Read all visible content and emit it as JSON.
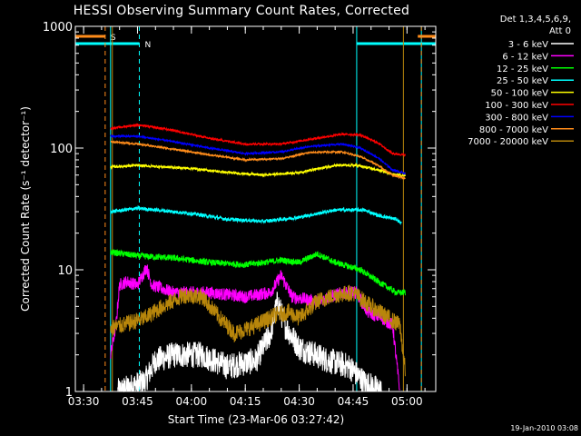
{
  "chart_data": {
    "type": "line",
    "title": "HESSI Observing Summary Count Rates, Corrected",
    "xlabel": "Start Time (23-Mar-06 03:27:42)",
    "ylabel": "Corrected Count Rate (s⁻¹ detector⁻¹)",
    "yscale": "log",
    "ylim": [
      1,
      1000
    ],
    "xlim": [
      "03:27:42",
      "05:08:00"
    ],
    "x_ticks": [
      "03:30",
      "03:45",
      "04:00",
      "04:15",
      "04:30",
      "04:45",
      "05:00"
    ],
    "y_ticks": [
      "1",
      "10",
      "100",
      "1000"
    ],
    "legend_header": [
      "Det 1,3,4,5,6,9,",
      "Att 0"
    ],
    "legend_position": "right",
    "footer": "19-Jan-2010 03:08",
    "flags": [
      {
        "label": "S",
        "color": "#ff8c1a",
        "start": "03:27:42",
        "end": "03:36:00"
      },
      {
        "label": "N",
        "color": "#00ffff",
        "start": "03:27:42",
        "end": "03:45:30"
      },
      {
        "label": "",
        "color": "#ff8c1a",
        "start": "05:03:00",
        "end": "05:08:00"
      },
      {
        "label": "",
        "color": "#00ffff",
        "start": "04:46:00",
        "end": "05:08:00"
      }
    ],
    "vlines": [
      {
        "time": "03:36:00",
        "color": "#ff8c1a",
        "style": "dashed"
      },
      {
        "time": "03:45:30",
        "color": "#00ffff",
        "style": "dashed"
      },
      {
        "time": "03:37:30",
        "color": "#00ffff",
        "style": "solid"
      },
      {
        "time": "03:38:00",
        "color": "#b8860b",
        "style": "solid"
      },
      {
        "time": "04:46:00",
        "color": "#00ffff",
        "style": "solid"
      },
      {
        "time": "04:59:00",
        "color": "#b8860b",
        "style": "solid"
      },
      {
        "time": "05:04:00",
        "color": "#00ffff",
        "style": "solid"
      },
      {
        "time": "05:04:00",
        "color": "#ff8c1a",
        "style": "dashed"
      }
    ],
    "series": [
      {
        "name": "3 - 6 keV",
        "color": "#ffffff",
        "noise": 0.25,
        "points": [
          [
            "03:39:30",
            1.0
          ],
          [
            "03:47:00",
            1.2
          ],
          [
            "03:50:00",
            1.8
          ],
          [
            "03:55:00",
            2.0
          ],
          [
            "04:03:00",
            2.0
          ],
          [
            "04:10:00",
            1.6
          ],
          [
            "04:18:00",
            1.8
          ],
          [
            "04:22:00",
            3.0
          ],
          [
            "04:24:00",
            5.5
          ],
          [
            "04:26:00",
            3.5
          ],
          [
            "04:30:00",
            2.3
          ],
          [
            "04:38:00",
            1.8
          ],
          [
            "04:44:00",
            1.6
          ],
          [
            "04:48:00",
            1.2
          ],
          [
            "04:53:00",
            1.0
          ]
        ]
      },
      {
        "name": "6 - 12 keV",
        "color": "#ff00ff",
        "noise": 0.12,
        "points": [
          [
            "03:37:30",
            2.0
          ],
          [
            "03:39:00",
            3.5
          ],
          [
            "03:40:00",
            7.5
          ],
          [
            "03:42:00",
            8.0
          ],
          [
            "03:45:00",
            7.5
          ],
          [
            "03:47:30",
            10.5
          ],
          [
            "03:49:00",
            7.5
          ],
          [
            "03:55:00",
            6.5
          ],
          [
            "04:05:00",
            6.5
          ],
          [
            "04:15:00",
            6.0
          ],
          [
            "04:22:00",
            6.5
          ],
          [
            "04:25:00",
            9.0
          ],
          [
            "04:28:00",
            6.0
          ],
          [
            "04:35:00",
            5.5
          ],
          [
            "04:42:00",
            6.5
          ],
          [
            "04:46:00",
            6.5
          ],
          [
            "04:49:00",
            4.5
          ],
          [
            "04:53:00",
            4.0
          ],
          [
            "04:56:00",
            3.5
          ],
          [
            "04:58:00",
            1.0
          ]
        ]
      },
      {
        "name": "12 - 25 keV",
        "color": "#00ff00",
        "noise": 0.06,
        "points": [
          [
            "03:37:30",
            14
          ],
          [
            "03:45:00",
            13
          ],
          [
            "03:55:00",
            12.5
          ],
          [
            "04:05:00",
            11.5
          ],
          [
            "04:15:00",
            11
          ],
          [
            "04:25:00",
            12
          ],
          [
            "04:30:00",
            11.5
          ],
          [
            "04:35:00",
            13.5
          ],
          [
            "04:40:00",
            11.5
          ],
          [
            "04:47:00",
            10
          ],
          [
            "04:52:00",
            8
          ],
          [
            "04:57:00",
            6.5
          ],
          [
            "04:59:30",
            6.5
          ]
        ]
      },
      {
        "name": "25 - 50 keV",
        "color": "#00ffff",
        "noise": 0.035,
        "points": [
          [
            "03:37:30",
            30
          ],
          [
            "03:45:00",
            32
          ],
          [
            "03:50:00",
            31
          ],
          [
            "04:00:00",
            29
          ],
          [
            "04:10:00",
            26
          ],
          [
            "04:20:00",
            25
          ],
          [
            "04:30:00",
            27
          ],
          [
            "04:40:00",
            31
          ],
          [
            "04:48:00",
            31
          ],
          [
            "04:52:00",
            28
          ],
          [
            "04:57:00",
            26
          ],
          [
            "04:58:30",
            24
          ]
        ]
      },
      {
        "name": "50 - 100 keV",
        "color": "#ffff00",
        "noise": 0.025,
        "points": [
          [
            "03:37:30",
            70
          ],
          [
            "03:45:00",
            72
          ],
          [
            "04:00:00",
            68
          ],
          [
            "04:10:00",
            63
          ],
          [
            "04:20:00",
            60
          ],
          [
            "04:30:00",
            63
          ],
          [
            "04:40:00",
            72
          ],
          [
            "04:46:00",
            72
          ],
          [
            "04:52:00",
            66
          ],
          [
            "04:57:00",
            60
          ],
          [
            "04:59:30",
            60
          ]
        ]
      },
      {
        "name": "100 - 300 keV",
        "color": "#ff0000",
        "noise": 0.02,
        "points": [
          [
            "03:37:30",
            145
          ],
          [
            "03:45:00",
            155
          ],
          [
            "03:55:00",
            140
          ],
          [
            "04:05:00",
            120
          ],
          [
            "04:15:00",
            108
          ],
          [
            "04:25:00",
            108
          ],
          [
            "04:33:00",
            118
          ],
          [
            "04:42:00",
            130
          ],
          [
            "04:47:00",
            128
          ],
          [
            "04:52:00",
            110
          ],
          [
            "04:56:00",
            90
          ],
          [
            "04:59:30",
            88
          ]
        ]
      },
      {
        "name": "300 - 800 keV",
        "color": "#0000ff",
        "noise": 0.018,
        "points": [
          [
            "03:37:30",
            125
          ],
          [
            "03:45:00",
            125
          ],
          [
            "03:55:00",
            113
          ],
          [
            "04:05:00",
            100
          ],
          [
            "04:15:00",
            90
          ],
          [
            "04:25:00",
            93
          ],
          [
            "04:33:00",
            103
          ],
          [
            "04:42:00",
            108
          ],
          [
            "04:47:00",
            100
          ],
          [
            "04:52:00",
            83
          ],
          [
            "04:56:00",
            66
          ],
          [
            "04:59:30",
            62
          ]
        ]
      },
      {
        "name": "800 - 7000 keV",
        "color": "#ff8c1a",
        "noise": 0.018,
        "points": [
          [
            "03:37:30",
            113
          ],
          [
            "03:45:00",
            108
          ],
          [
            "03:55:00",
            98
          ],
          [
            "04:05:00",
            88
          ],
          [
            "04:15:00",
            80
          ],
          [
            "04:25:00",
            82
          ],
          [
            "04:33:00",
            92
          ],
          [
            "04:42:00",
            93
          ],
          [
            "04:47:00",
            85
          ],
          [
            "04:52:00",
            72
          ],
          [
            "04:56:00",
            60
          ],
          [
            "04:59:30",
            56
          ]
        ]
      },
      {
        "name": "7000 - 20000 keV",
        "color": "#b8860b",
        "noise": 0.16,
        "points": [
          [
            "03:37:30",
            3.3
          ],
          [
            "03:42:00",
            3.6
          ],
          [
            "03:47:00",
            4.0
          ],
          [
            "03:52:00",
            5.0
          ],
          [
            "03:58:00",
            6.2
          ],
          [
            "04:03:00",
            6.0
          ],
          [
            "04:08:00",
            4.0
          ],
          [
            "04:12:00",
            3.0
          ],
          [
            "04:18:00",
            3.5
          ],
          [
            "04:23:00",
            4.2
          ],
          [
            "04:27:00",
            4.5
          ],
          [
            "04:30:00",
            4.0
          ],
          [
            "04:35:00",
            5.5
          ],
          [
            "04:40:00",
            6.2
          ],
          [
            "04:45:00",
            6.5
          ],
          [
            "04:50:00",
            5.0
          ],
          [
            "04:55:00",
            4.0
          ],
          [
            "04:58:00",
            3.5
          ],
          [
            "04:59:30",
            1.5
          ]
        ]
      }
    ]
  }
}
